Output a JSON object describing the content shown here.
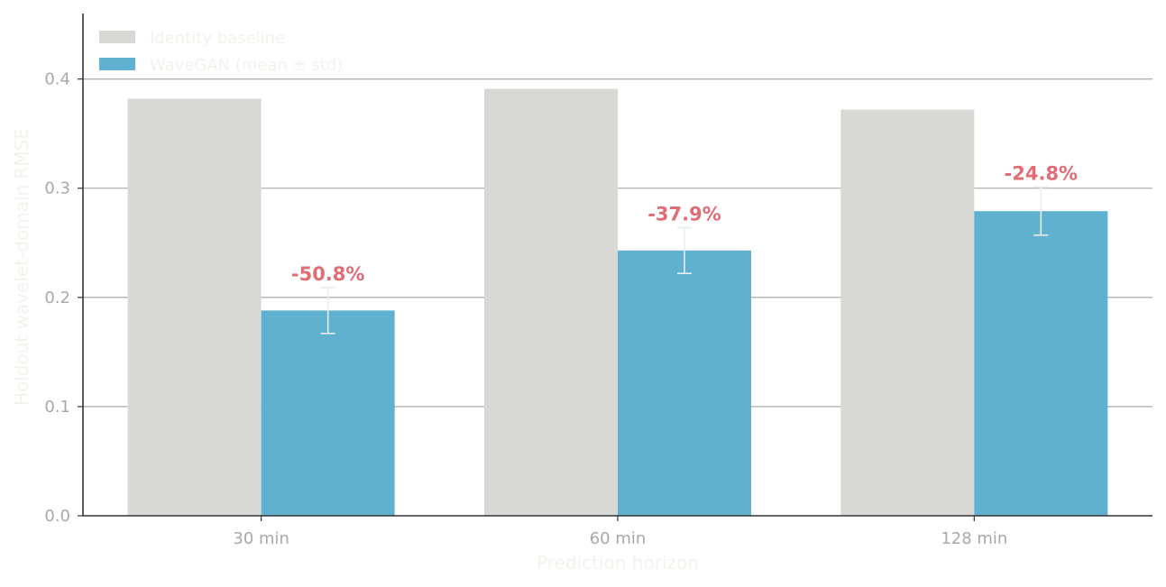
{
  "chart_data": {
    "type": "bar",
    "categories": [
      "30 min",
      "60 min",
      "128 min"
    ],
    "series": [
      {
        "name": "Identity baseline",
        "values": [
          0.382,
          0.391,
          0.372
        ],
        "color": "#d8d8d4"
      },
      {
        "name": "WaveGAN (mean ± std)",
        "values": [
          0.188,
          0.243,
          0.279
        ],
        "std": [
          0.021,
          0.021,
          0.022
        ],
        "color": "#5fb1cf"
      }
    ],
    "annotations": [
      "-50.8%",
      "-37.9%",
      "-24.8%"
    ],
    "annotation_color": "#e06c75",
    "xlabel": "Prediction horizon",
    "ylabel": "Holdout wavelet-domain RMSE",
    "ylim": [
      0,
      0.46
    ],
    "yticks": [
      0.0,
      0.1,
      0.2,
      0.3,
      0.4
    ],
    "ytick_labels": [
      "0.0",
      "0.1",
      "0.2",
      "0.3",
      "0.4"
    ],
    "grid": "horizontal",
    "legend_position": "top-left",
    "colors": {
      "grid": "#a0a0a0",
      "axis": "#333333",
      "tick_text": "#a8a8a8",
      "faint_text": "#f2f2ec",
      "errorbar": "#e6eef2"
    }
  }
}
